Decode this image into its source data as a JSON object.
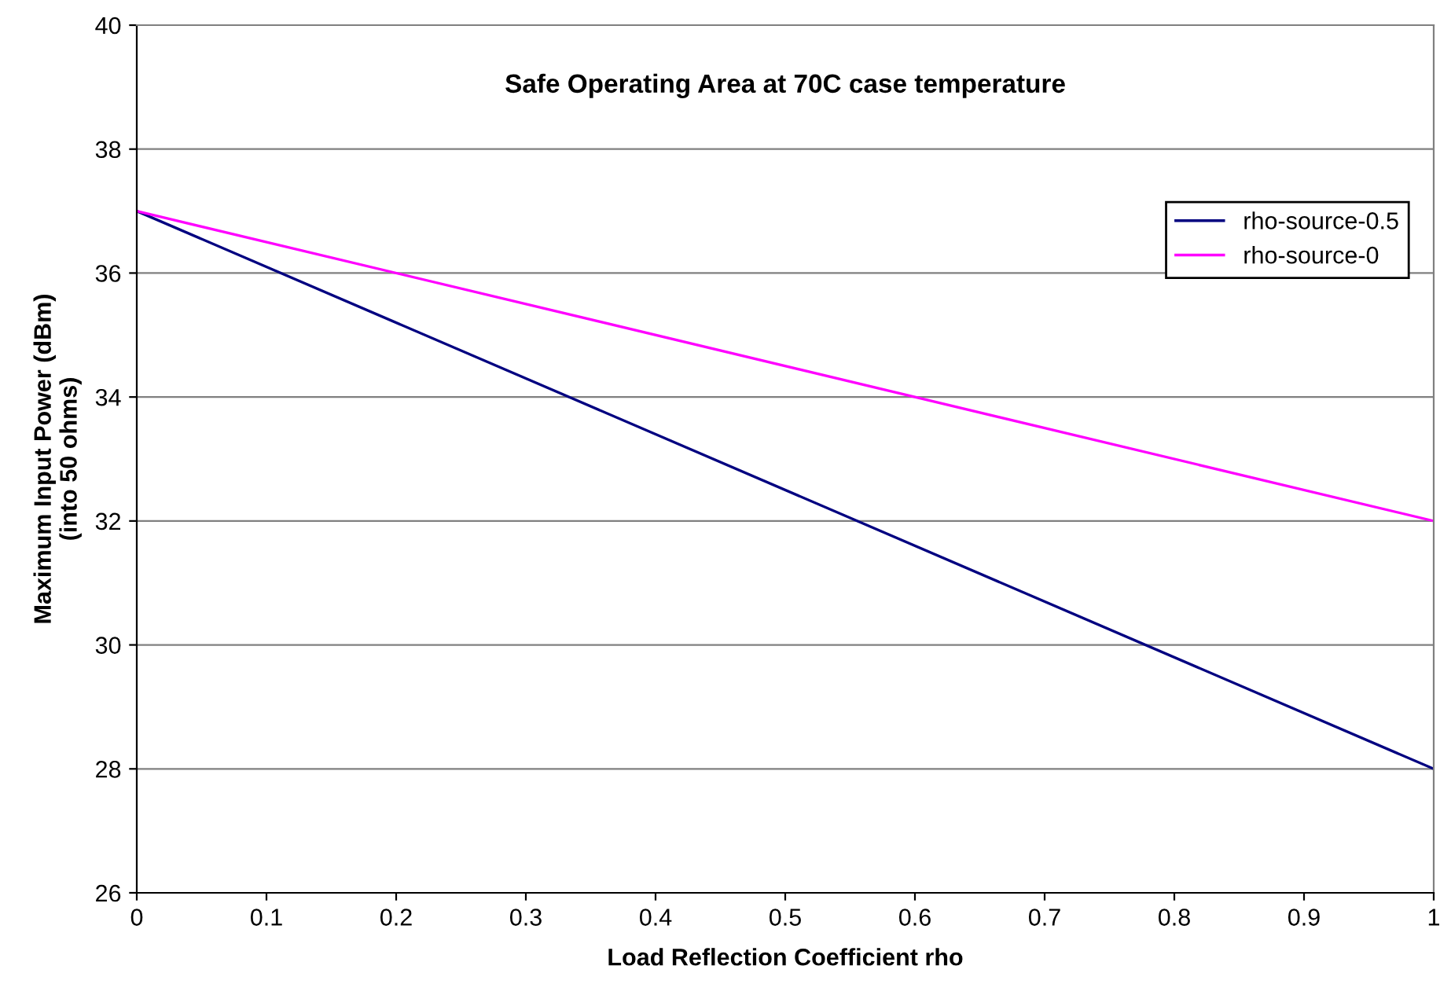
{
  "chart_data": {
    "type": "line",
    "title": "Safe Operating Area at 70C case temperature",
    "xlabel": "Load Reflection Coefficient rho",
    "ylabel": "Maximum Input Power (dBm)\n(into 50 ohms)",
    "x": [
      0,
      1
    ],
    "series": [
      {
        "name": "rho-source-0.5",
        "color": "#000080",
        "values": [
          37,
          28
        ]
      },
      {
        "name": "rho-source-0",
        "color": "#ff00ff",
        "values": [
          37,
          32
        ]
      }
    ],
    "xlim": [
      0,
      1
    ],
    "xticks": [
      0,
      0.1,
      0.2,
      0.3,
      0.4,
      0.5,
      0.6,
      0.7,
      0.8,
      0.9,
      1
    ],
    "ylim": [
      26,
      40
    ],
    "yticks": [
      26,
      28,
      30,
      32,
      34,
      36,
      38,
      40
    ],
    "grid": "y",
    "legend": "top right",
    "marker": "none",
    "line_style": "solid"
  }
}
